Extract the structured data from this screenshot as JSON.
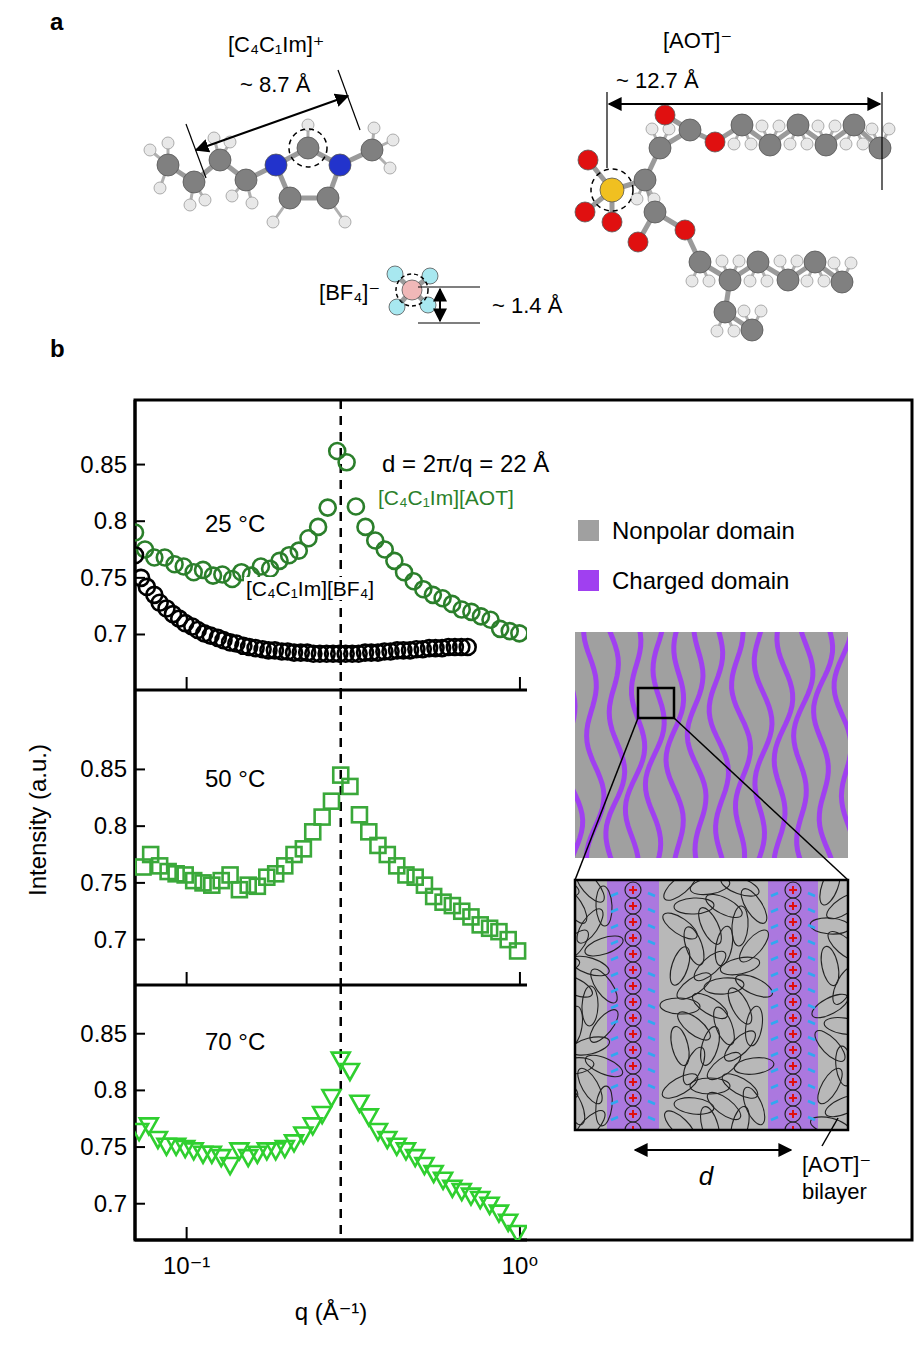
{
  "panel_a": {
    "letter": "a",
    "molecules": [
      {
        "label": "[C₄C₁Im]⁺",
        "size_label": "~ 8.7 Å"
      },
      {
        "label": "[AOT]⁻",
        "size_label": "~ 12.7 Å"
      },
      {
        "label": "[BF₄]⁻",
        "size_label": "~ 1.4 Å"
      }
    ]
  },
  "panel_b": {
    "letter": "b",
    "y_axis_title": "Intensity (a.u.)",
    "legend_items": [
      {
        "name": "Nonpolar domain",
        "color": "#a0a0a0"
      },
      {
        "name": "Charged domain",
        "color": "#a040f0"
      }
    ],
    "schematic": {
      "spacing_label": "d",
      "bilayer_label": "[AOT]⁻ bilayer"
    }
  },
  "chart_data": [
    {
      "type": "scatter",
      "log": "x",
      "xlim": [
        0.07,
        1.05
      ],
      "ylim": [
        0.651,
        0.907
      ],
      "xticks": [
        0.1,
        1
      ],
      "yticks": [
        0.7,
        0.75,
        0.8,
        0.85
      ],
      "tick_labels": "y",
      "annotations": [
        "25 °C",
        "d = 2π/q = 22 Å"
      ],
      "vline_x": 0.29,
      "series": [
        {
          "name": "[C₄C₁Im][AOT]",
          "color": "#2b7f2b",
          "marker": "circle",
          "x": [
            0.07,
            0.075,
            0.08,
            0.086,
            0.092,
            0.098,
            0.105,
            0.112,
            0.12,
            0.128,
            0.137,
            0.146,
            0.156,
            0.167,
            0.178,
            0.19,
            0.203,
            0.217,
            0.232,
            0.248,
            0.265,
            0.283,
            0.302,
            0.322,
            0.344,
            0.368,
            0.393,
            0.42,
            0.449,
            0.48,
            0.513,
            0.548,
            0.586,
            0.626,
            0.669,
            0.715,
            0.764,
            0.816,
            0.872,
            0.932,
            0.996
          ],
          "values": [
            0.79,
            0.775,
            0.768,
            0.768,
            0.762,
            0.76,
            0.755,
            0.757,
            0.752,
            0.753,
            0.749,
            0.755,
            0.752,
            0.76,
            0.758,
            0.765,
            0.77,
            0.774,
            0.785,
            0.795,
            0.812,
            0.862,
            0.852,
            0.813,
            0.795,
            0.783,
            0.775,
            0.765,
            0.755,
            0.747,
            0.74,
            0.735,
            0.732,
            0.727,
            0.722,
            0.72,
            0.716,
            0.713,
            0.705,
            0.703,
            0.701
          ]
        },
        {
          "name": "[C₄C₁Im][BF₄]",
          "color": "#000000",
          "marker": "circle",
          "x": [
            0.07,
            0.073,
            0.076,
            0.08,
            0.083,
            0.087,
            0.091,
            0.095,
            0.099,
            0.104,
            0.108,
            0.113,
            0.118,
            0.124,
            0.129,
            0.135,
            0.141,
            0.148,
            0.154,
            0.161,
            0.169,
            0.176,
            0.184,
            0.193,
            0.201,
            0.21,
            0.22,
            0.23,
            0.24,
            0.251,
            0.263,
            0.275,
            0.287,
            0.3,
            0.314,
            0.328,
            0.343,
            0.358,
            0.375,
            0.392,
            0.409,
            0.428,
            0.447,
            0.468,
            0.489,
            0.511,
            0.534,
            0.558,
            0.584,
            0.61,
            0.638,
            0.667,
            0.697
          ],
          "values": [
            0.77,
            0.75,
            0.742,
            0.735,
            0.728,
            0.723,
            0.718,
            0.714,
            0.71,
            0.707,
            0.704,
            0.701,
            0.699,
            0.697,
            0.695,
            0.693,
            0.692,
            0.69,
            0.689,
            0.688,
            0.687,
            0.686,
            0.686,
            0.685,
            0.685,
            0.684,
            0.684,
            0.684,
            0.683,
            0.683,
            0.683,
            0.683,
            0.683,
            0.683,
            0.683,
            0.683,
            0.684,
            0.684,
            0.684,
            0.685,
            0.685,
            0.686,
            0.686,
            0.686,
            0.687,
            0.687,
            0.688,
            0.688,
            0.688,
            0.689,
            0.689,
            0.689,
            0.689
          ]
        }
      ]
    },
    {
      "type": "scatter",
      "log": "x",
      "xlim": [
        0.07,
        1.05
      ],
      "ylim": [
        0.66,
        0.92
      ],
      "xticks": [
        0.1,
        1
      ],
      "yticks": [
        0.7,
        0.75,
        0.8,
        0.85
      ],
      "tick_labels": "y",
      "annotations": [
        "50 °C"
      ],
      "vline_x": 0.29,
      "series": [
        {
          "color": "#3aa83a",
          "marker": "square",
          "x": [
            0.074,
            0.078,
            0.083,
            0.088,
            0.093,
            0.099,
            0.105,
            0.112,
            0.119,
            0.127,
            0.135,
            0.144,
            0.153,
            0.163,
            0.174,
            0.185,
            0.197,
            0.21,
            0.224,
            0.239,
            0.255,
            0.272,
            0.29,
            0.309,
            0.33,
            0.352,
            0.375,
            0.4,
            0.427,
            0.455,
            0.485,
            0.517,
            0.551,
            0.588,
            0.627,
            0.669,
            0.713,
            0.76,
            0.811,
            0.865,
            0.922,
            0.984
          ],
          "values": [
            0.764,
            0.775,
            0.765,
            0.76,
            0.758,
            0.757,
            0.752,
            0.75,
            0.748,
            0.752,
            0.757,
            0.744,
            0.748,
            0.747,
            0.755,
            0.758,
            0.765,
            0.775,
            0.78,
            0.795,
            0.808,
            0.822,
            0.845,
            0.835,
            0.81,
            0.795,
            0.783,
            0.775,
            0.765,
            0.757,
            0.755,
            0.748,
            0.738,
            0.733,
            0.73,
            0.725,
            0.72,
            0.713,
            0.71,
            0.707,
            0.7,
            0.69
          ]
        }
      ]
    },
    {
      "type": "scatter",
      "log": "x",
      "xlim": [
        0.07,
        1.05
      ],
      "ylim": [
        0.668,
        0.893
      ],
      "xticks": [
        {
          "value": 0.1,
          "label": "10⁻¹"
        },
        {
          "value": 1,
          "label": "10⁰"
        }
      ],
      "yticks": [
        0.7,
        0.75,
        0.8,
        0.85
      ],
      "xlabel": "q (Å⁻¹)",
      "annotations": [
        "70 °C"
      ],
      "vline_x": 0.29,
      "series": [
        {
          "color": "#2fcf2f",
          "marker": "triangle-down",
          "x": [
            0.072,
            0.077,
            0.082,
            0.087,
            0.093,
            0.099,
            0.105,
            0.112,
            0.119,
            0.127,
            0.135,
            0.144,
            0.153,
            0.163,
            0.174,
            0.185,
            0.197,
            0.21,
            0.224,
            0.239,
            0.255,
            0.272,
            0.29,
            0.309,
            0.33,
            0.352,
            0.375,
            0.4,
            0.427,
            0.455,
            0.485,
            0.517,
            0.551,
            0.588,
            0.627,
            0.669,
            0.713,
            0.76,
            0.811,
            0.865,
            0.922,
            0.984
          ],
          "values": [
            0.765,
            0.77,
            0.758,
            0.752,
            0.752,
            0.75,
            0.748,
            0.745,
            0.745,
            0.742,
            0.735,
            0.748,
            0.742,
            0.745,
            0.748,
            0.748,
            0.75,
            0.755,
            0.762,
            0.77,
            0.78,
            0.795,
            0.828,
            0.818,
            0.79,
            0.778,
            0.765,
            0.758,
            0.752,
            0.748,
            0.742,
            0.735,
            0.728,
            0.722,
            0.715,
            0.712,
            0.708,
            0.705,
            0.7,
            0.693,
            0.685,
            0.675
          ]
        }
      ]
    }
  ]
}
